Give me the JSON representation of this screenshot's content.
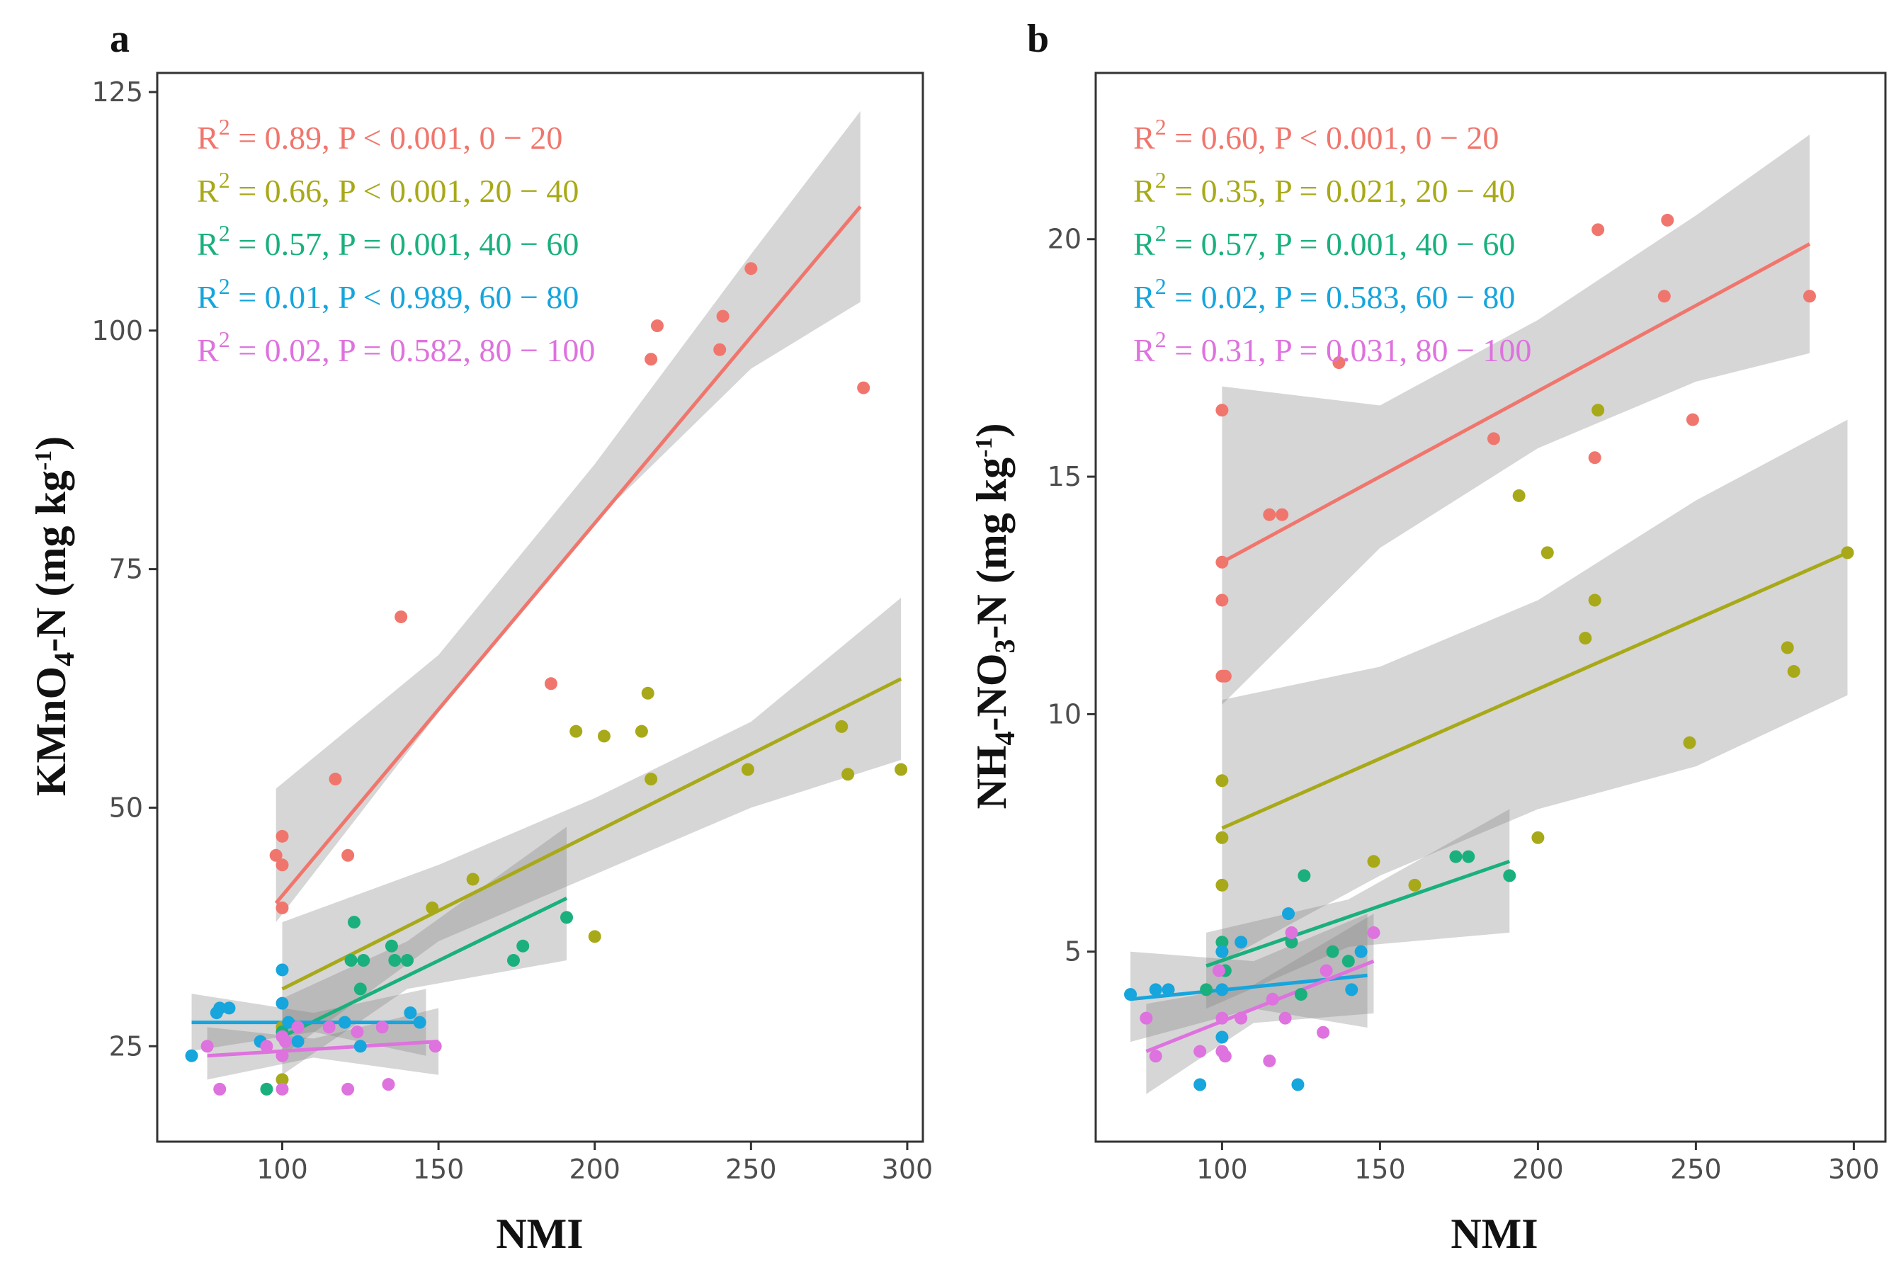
{
  "chart_data": [
    {
      "type": "scatter",
      "panel": "a",
      "xlabel": "NMI",
      "ylabel_main": "KMnO",
      "ylabel_sub": "4",
      "ylabel_rest": "-N (mg kg",
      "ylabel_sup": "-1",
      "ylabel_close": ")",
      "xlim": [
        60,
        305
      ],
      "ylim": [
        15,
        127
      ],
      "xticks": [
        100,
        150,
        200,
        250,
        300
      ],
      "yticks": [
        25,
        50,
        75,
        100,
        125
      ],
      "series": [
        {
          "name": "0-20",
          "color": "#f0766d",
          "points": [
            [
              98,
              45
            ],
            [
              100,
              44
            ],
            [
              100,
              47
            ],
            [
              100,
              39.5
            ],
            [
              117,
              53
            ],
            [
              121,
              45
            ],
            [
              138,
              70
            ],
            [
              186,
              63
            ],
            [
              218,
              97
            ],
            [
              220,
              100.5
            ],
            [
              240,
              98
            ],
            [
              241,
              101.5
            ],
            [
              250,
              106.5
            ],
            [
              286,
              94
            ]
          ],
          "fit": [
            [
              98,
              40
            ],
            [
              285,
              113
            ]
          ],
          "band": [
            [
              98,
              38,
              52
            ],
            [
              150,
              60,
              66
            ],
            [
              200,
              80,
              86
            ],
            [
              250,
              96,
              108
            ],
            [
              285,
              103,
              123
            ]
          ],
          "stat": {
            "r2": "0.89",
            "op": "<",
            "p": "0.001",
            "range": "0 − 20"
          }
        },
        {
          "name": "20-40",
          "color": "#a8a918",
          "points": [
            [
              100,
              21.5
            ],
            [
              100,
              27
            ],
            [
              148,
              39.5
            ],
            [
              161,
              42.5
            ],
            [
              194,
              58
            ],
            [
              200,
              36.5
            ],
            [
              203,
              57.5
            ],
            [
              215,
              58
            ],
            [
              217,
              62
            ],
            [
              218,
              53
            ],
            [
              249,
              54
            ],
            [
              279,
              58.5
            ],
            [
              281,
              53.5
            ],
            [
              298,
              54
            ]
          ],
          "fit": [
            [
              100,
              31
            ],
            [
              298,
              63.5
            ]
          ],
          "band": [
            [
              100,
              24,
              38
            ],
            [
              150,
              36,
              44
            ],
            [
              200,
              43,
              51
            ],
            [
              250,
              50,
              59
            ],
            [
              298,
              55,
              72
            ]
          ],
          "stat": {
            "r2": "0.66",
            "op": "<",
            "p": "0.001",
            "range": "20 − 40"
          }
        },
        {
          "name": "40-60",
          "color": "#1ab07e",
          "points": [
            [
              95,
              20.5
            ],
            [
              100,
              26.5
            ],
            [
              122,
              34
            ],
            [
              123,
              38
            ],
            [
              125,
              31
            ],
            [
              126,
              34
            ],
            [
              135,
              35.5
            ],
            [
              136,
              34
            ],
            [
              140,
              34
            ],
            [
              174,
              34
            ],
            [
              177,
              35.5
            ],
            [
              191,
              38.5
            ]
          ],
          "fit": [
            [
              100,
              26
            ],
            [
              191,
              40.5
            ]
          ],
          "band": [
            [
              100,
              22,
              30
            ],
            [
              140,
              31,
              36
            ],
            [
              191,
              34,
              48
            ]
          ],
          "stat": {
            "r2": "0.57",
            "op": "=",
            "p": "0.001",
            "range": "40 − 60"
          }
        },
        {
          "name": "60-80",
          "color": "#16a5dc",
          "points": [
            [
              71,
              24
            ],
            [
              79,
              28.5
            ],
            [
              80,
              29
            ],
            [
              83,
              29
            ],
            [
              93,
              25.5
            ],
            [
              100,
              33
            ],
            [
              100,
              29.5
            ],
            [
              102,
              27.5
            ],
            [
              105,
              25.5
            ],
            [
              120,
              27.5
            ],
            [
              125,
              25
            ],
            [
              141,
              28.5
            ],
            [
              144,
              27.5
            ]
          ],
          "fit": [
            [
              71,
              27.5
            ],
            [
              146,
              27.5
            ]
          ],
          "band": [
            [
              71,
              24.5,
              30.5
            ],
            [
              110,
              26.5,
              28.5
            ],
            [
              146,
              24,
              31
            ]
          ],
          "stat": {
            "r2": "0.01",
            "op": "<",
            "p": "0.989",
            "range": "60 − 80"
          }
        },
        {
          "name": "80-100",
          "color": "#de72de",
          "points": [
            [
              76,
              25
            ],
            [
              80,
              20.5
            ],
            [
              95,
              25
            ],
            [
              100,
              24
            ],
            [
              100,
              26
            ],
            [
              100,
              20.5
            ],
            [
              101,
              25.5
            ],
            [
              105,
              27
            ],
            [
              115,
              27
            ],
            [
              121,
              20.5
            ],
            [
              124,
              26.5
            ],
            [
              132,
              27
            ],
            [
              134,
              21
            ],
            [
              149,
              25
            ]
          ],
          "fit": [
            [
              76,
              24
            ],
            [
              150,
              25.5
            ]
          ],
          "band": [
            [
              76,
              21.5,
              27
            ],
            [
              110,
              23.8,
              25.8
            ],
            [
              150,
              22,
              29
            ]
          ],
          "stat": {
            "r2": "0.02",
            "op": "=",
            "p": "0.582",
            "range": "80 − 100"
          }
        }
      ]
    },
    {
      "type": "scatter",
      "panel": "b",
      "xlabel": "NMI",
      "ylabel_main": "NH",
      "ylabel_sub": "4",
      "ylabel_rest": "-NO",
      "ylabel_sub2": "3",
      "ylabel_rest2": "-N (mg kg",
      "ylabel_sup": "-1",
      "ylabel_close": ")",
      "xlim": [
        60,
        310
      ],
      "ylim": [
        1.0,
        23.5
      ],
      "xticks": [
        100,
        150,
        200,
        250,
        300
      ],
      "yticks": [
        5,
        10,
        15,
        20
      ],
      "series": [
        {
          "name": "0-20",
          "color": "#f0766d",
          "points": [
            [
              100,
              16.4
            ],
            [
              100,
              13.2
            ],
            [
              100,
              12.4
            ],
            [
              100,
              10.8
            ],
            [
              101,
              10.8
            ],
            [
              115,
              14.2
            ],
            [
              119,
              14.2
            ],
            [
              137,
              17.4
            ],
            [
              186,
              15.8
            ],
            [
              218,
              15.4
            ],
            [
              219,
              20.2
            ],
            [
              240,
              18.8
            ],
            [
              241,
              20.4
            ],
            [
              249,
              16.2
            ],
            [
              286,
              18.8
            ]
          ],
          "fit": [
            [
              100,
              13.2
            ],
            [
              286,
              19.9
            ]
          ],
          "band": [
            [
              100,
              10.2,
              16.9
            ],
            [
              150,
              13.5,
              16.5
            ],
            [
              200,
              15.6,
              18.3
            ],
            [
              250,
              17.0,
              20.5
            ],
            [
              286,
              17.6,
              22.2
            ]
          ],
          "stat": {
            "r2": "0.60",
            "op": "<",
            "p": "0.001",
            "range": "0 − 20"
          }
        },
        {
          "name": "20-40",
          "color": "#a8a918",
          "points": [
            [
              100,
              8.6
            ],
            [
              100,
              7.4
            ],
            [
              100,
              6.4
            ],
            [
              148,
              6.9
            ],
            [
              161,
              6.4
            ],
            [
              194,
              14.6
            ],
            [
              200,
              7.4
            ],
            [
              203,
              13.4
            ],
            [
              215,
              11.6
            ],
            [
              218,
              12.4
            ],
            [
              219,
              16.4
            ],
            [
              248,
              9.4
            ],
            [
              279,
              11.4
            ],
            [
              281,
              10.9
            ],
            [
              298,
              13.4
            ]
          ],
          "fit": [
            [
              100,
              7.6
            ],
            [
              298,
              13.4
            ]
          ],
          "band": [
            [
              100,
              4.8,
              10.3
            ],
            [
              150,
              6.6,
              11.0
            ],
            [
              200,
              8.0,
              12.4
            ],
            [
              250,
              8.9,
              14.5
            ],
            [
              298,
              10.4,
              16.2
            ]
          ],
          "stat": {
            "r2": "0.35",
            "op": "=",
            "p": "0.021",
            "range": "20 − 40"
          }
        },
        {
          "name": "40-60",
          "color": "#1ab07e",
          "points": [
            [
              95,
              4.2
            ],
            [
              100,
              5.0
            ],
            [
              100,
              5.2
            ],
            [
              101,
              4.6
            ],
            [
              122,
              5.2
            ],
            [
              126,
              6.6
            ],
            [
              125,
              4.1
            ],
            [
              135,
              5.0
            ],
            [
              140,
              4.8
            ],
            [
              174,
              7.0
            ],
            [
              178,
              7.0
            ],
            [
              191,
              6.6
            ]
          ],
          "fit": [
            [
              95,
              4.7
            ],
            [
              191,
              6.9
            ]
          ],
          "band": [
            [
              95,
              3.8,
              5.4
            ],
            [
              140,
              5.1,
              6.1
            ],
            [
              191,
              5.4,
              8.0
            ]
          ],
          "stat": {
            "r2": "0.57",
            "op": "=",
            "p": "0.001",
            "range": "40 − 60"
          }
        },
        {
          "name": "60-80",
          "color": "#16a5dc",
          "points": [
            [
              71,
              4.1
            ],
            [
              79,
              4.2
            ],
            [
              83,
              4.2
            ],
            [
              93,
              2.2
            ],
            [
              100,
              5.0
            ],
            [
              100,
              4.2
            ],
            [
              100,
              3.2
            ],
            [
              106,
              5.2
            ],
            [
              121,
              5.8
            ],
            [
              124,
              2.2
            ],
            [
              141,
              4.2
            ],
            [
              144,
              5.0
            ]
          ],
          "fit": [
            [
              71,
              4.0
            ],
            [
              146,
              4.5
            ]
          ],
          "band": [
            [
              71,
              3.1,
              5.0
            ],
            [
              110,
              3.8,
              4.8
            ],
            [
              146,
              3.4,
              5.8
            ]
          ],
          "stat": {
            "r2": "0.02",
            "op": "=",
            "p": "0.583",
            "range": "60 − 80"
          }
        },
        {
          "name": "80-100",
          "color": "#de72de",
          "points": [
            [
              76,
              3.6
            ],
            [
              79,
              2.8
            ],
            [
              93,
              2.9
            ],
            [
              99,
              4.6
            ],
            [
              100,
              3.6
            ],
            [
              100,
              2.9
            ],
            [
              101,
              2.8
            ],
            [
              106,
              3.6
            ],
            [
              115,
              2.7
            ],
            [
              116,
              4.0
            ],
            [
              120,
              3.6
            ],
            [
              122,
              5.4
            ],
            [
              132,
              3.3
            ],
            [
              133,
              4.6
            ],
            [
              148,
              5.4
            ]
          ],
          "fit": [
            [
              76,
              2.9
            ],
            [
              148,
              4.8
            ]
          ],
          "band": [
            [
              76,
              2.0,
              3.9
            ],
            [
              110,
              3.5,
              4.3
            ],
            [
              148,
              3.7,
              5.8
            ]
          ],
          "stat": {
            "r2": "0.31",
            "op": "=",
            "p": "0.031",
            "range": "80 − 100"
          }
        }
      ]
    }
  ]
}
